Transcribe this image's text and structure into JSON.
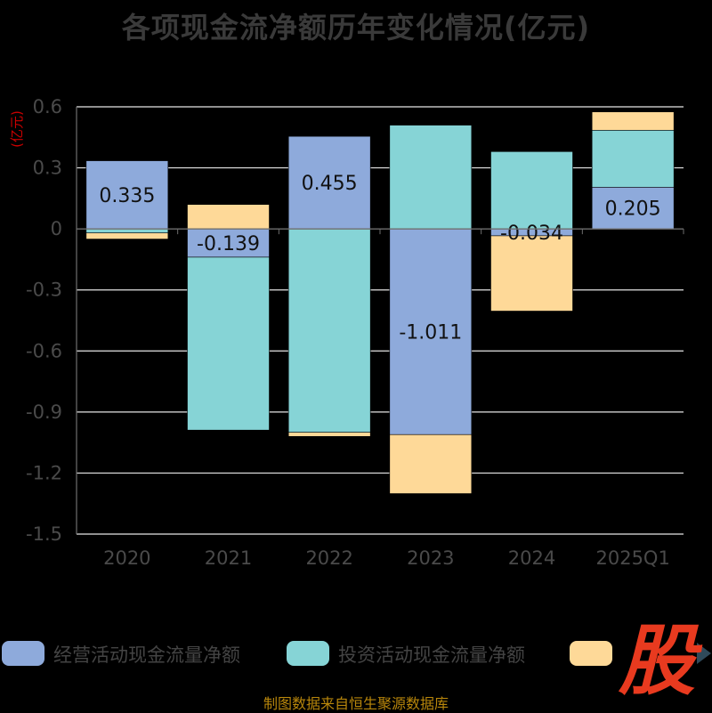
{
  "chart_data": {
    "type": "bar",
    "stacked": true,
    "title": "各项现金流净额历年变化情况(亿元)",
    "ylabel": "(亿元)",
    "xlabel": "",
    "categories": [
      "2020",
      "2021",
      "2022",
      "2023",
      "2024",
      "2025Q1"
    ],
    "ylim": [
      -1.5,
      0.6
    ],
    "yticks": [
      0.6,
      0.3,
      0,
      -0.3,
      -0.6,
      -0.9,
      -1.2,
      -1.5
    ],
    "ytick_labels": [
      "0.6",
      "0.3",
      "0",
      "-0.3",
      "-0.6",
      "-0.9",
      "-1.2",
      "-1.5"
    ],
    "grid": true,
    "legend_position": "bottom",
    "series": [
      {
        "name": "经营活动现金流量净额",
        "color": "#8eaadb",
        "values": [
          0.335,
          -0.139,
          0.455,
          -1.011,
          -0.034,
          0.205
        ],
        "labels": [
          "0.335",
          "-0.139",
          "0.455",
          "-1.011",
          "-0.034",
          "0.205"
        ]
      },
      {
        "name": "投资活动现金流量净额",
        "color": "#86d4d6",
        "values": [
          -0.02,
          -0.85,
          -1.0,
          0.51,
          0.38,
          0.28
        ]
      },
      {
        "name": "",
        "color": "#fed998",
        "values": [
          -0.03,
          0.12,
          -0.02,
          -0.29,
          -0.37,
          0.09
        ]
      }
    ]
  },
  "watermark_text": "股",
  "source": "制图数据来自恒生聚源数据库"
}
